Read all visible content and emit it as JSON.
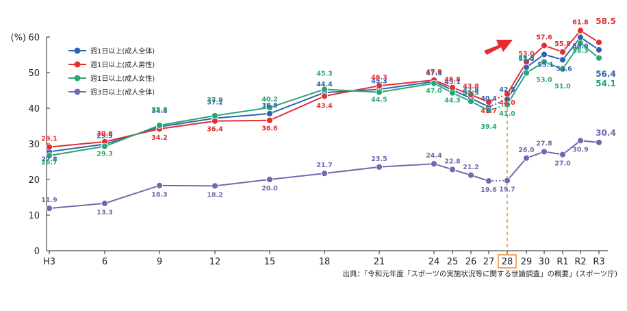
{
  "chart_data": {
    "type": "line",
    "ylabel": "(%)",
    "ylim": [
      0,
      60
    ],
    "yticks": [
      0,
      10,
      20,
      30,
      40,
      50,
      60
    ],
    "categories": [
      "H3",
      "6",
      "9",
      "12",
      "15",
      "18",
      "21",
      "24",
      "25",
      "26",
      "27",
      "28",
      "29",
      "30",
      "R1",
      "R2",
      "R3"
    ],
    "highlight_category": "28",
    "source": "出典：「令和元年度「スポーツの実施状況等に関する世論調査」の概要」(スポーツ庁)",
    "series": [
      {
        "name": "週1日以上(成人全体)",
        "color": "#2f62b0",
        "values": [
          27.8,
          29.9,
          34.8,
          37.2,
          38.5,
          44.4,
          45.3,
          47.5,
          45.1,
          42.8,
          40.4,
          42.5,
          51.5,
          55.1,
          53.6,
          59.9,
          56.4
        ],
        "dotted_from": 10,
        "big": [
          16
        ]
      },
      {
        "name": "週1日以上(成人男性)",
        "color": "#e03030",
        "values": [
          29.1,
          30.6,
          34.2,
          36.4,
          36.6,
          43.4,
          46.3,
          47.9,
          45.8,
          43.8,
          41.7,
          44.0,
          53.0,
          57.6,
          55.8,
          61.8,
          58.5
        ],
        "dotted_from": 10,
        "big": [
          16
        ]
      },
      {
        "name": "週1日以上(成人女性)",
        "color": "#2aa672",
        "values": [
          26.7,
          29.3,
          35.2,
          37.9,
          40.2,
          45.3,
          44.5,
          47.0,
          44.3,
          41.9,
          39.4,
          41.0,
          49.9,
          53.0,
          51.0,
          58.3,
          54.1
        ],
        "dotted_from": 10,
        "big": [
          16
        ]
      },
      {
        "name": "週3日以上(成人全体)",
        "color": "#6f6aaf",
        "values": [
          11.9,
          13.3,
          18.3,
          18.2,
          20.0,
          21.7,
          23.5,
          24.4,
          22.8,
          21.2,
          19.6,
          19.7,
          26.0,
          27.8,
          27.0,
          30.9,
          30.4
        ],
        "dotted_from": 10,
        "big": [
          16
        ]
      }
    ]
  }
}
